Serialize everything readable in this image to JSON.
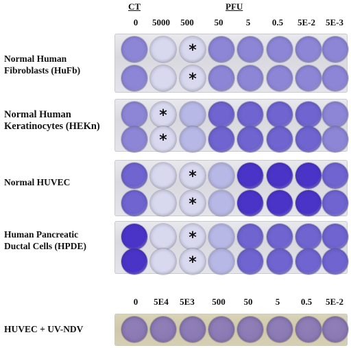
{
  "header": {
    "ct_label": "CT",
    "pfu_label": "PFU",
    "columns_top": [
      "0",
      "5000",
      "500",
      "50",
      "5",
      "0.5",
      "5E-2",
      "5E-3"
    ],
    "columns_bottom": [
      "0",
      "5E4",
      "5E3",
      "500",
      "50",
      "5",
      "0.5",
      "5E-2"
    ]
  },
  "rows": [
    {
      "label_lines": [
        "Normal Human",
        "Fibroblasts (HuFb)"
      ]
    },
    {
      "label_lines": [
        "Normal Human",
        "Keratinocytes (HEKn)"
      ]
    },
    {
      "label_lines": [
        "Normal HUVEC"
      ]
    },
    {
      "label_lines": [
        "Human Pancreatic",
        "Ductal Cells (HPDE)"
      ]
    },
    {
      "label_lines": [
        "HUVEC + UV-NDV"
      ]
    }
  ],
  "marker_symbol": "*",
  "colors": {
    "light": "#d8d8ee",
    "pale": "#b8b8e6",
    "medium": "#8d86d6",
    "strong": "#6f64d0",
    "deep": "#4a34c8",
    "tan_well": "#8f7fb7"
  }
}
